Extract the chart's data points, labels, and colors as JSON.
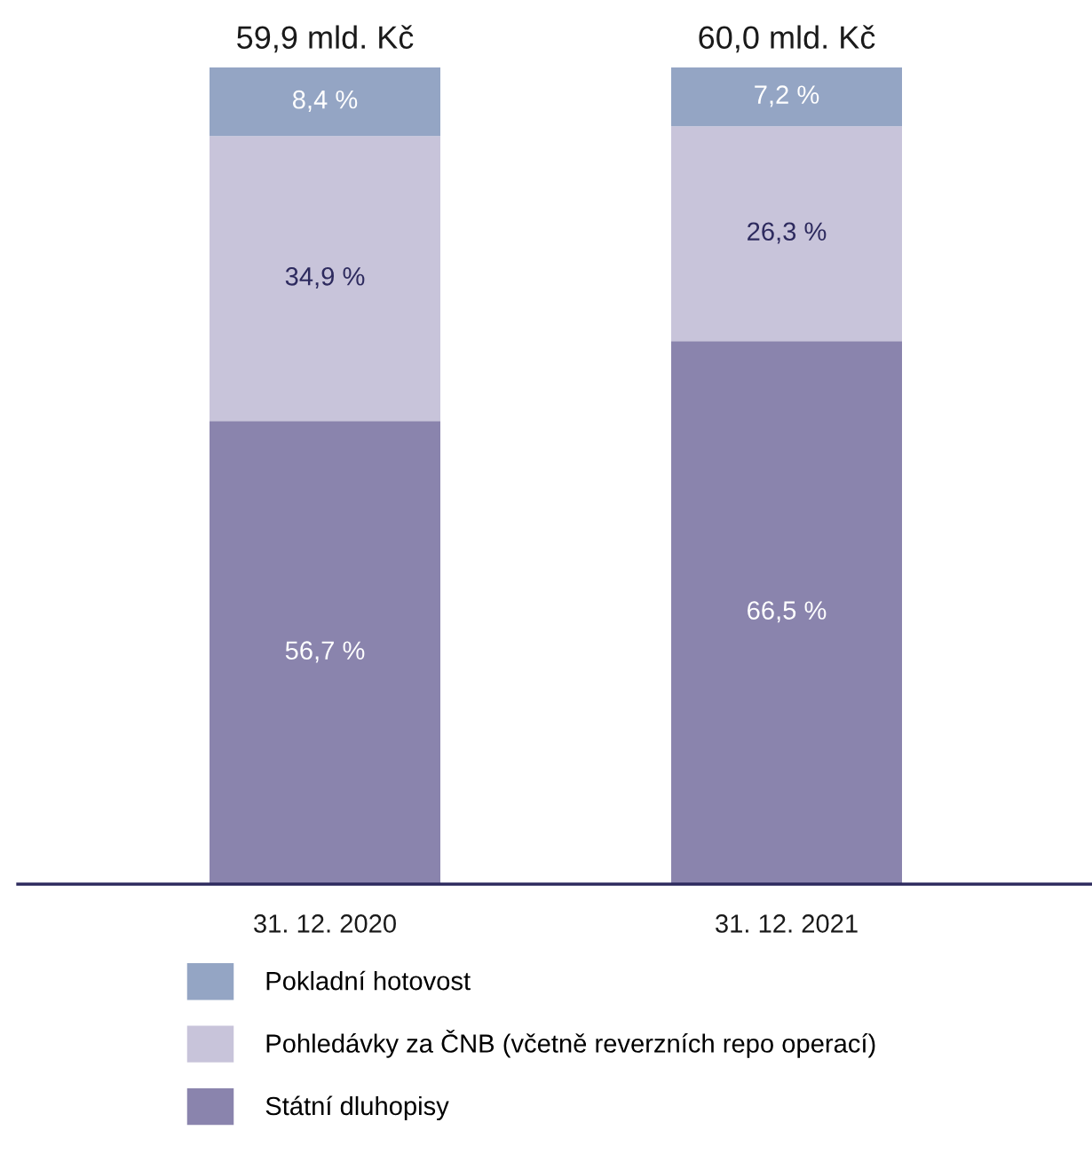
{
  "chart_data": {
    "type": "bar",
    "stacked": true,
    "categories": [
      "31. 12. 2020",
      "31. 12. 2021"
    ],
    "series": [
      {
        "name": "Státní dluhopisy",
        "color": "#8a84ad",
        "values": [
          56.7,
          66.5
        ],
        "value_labels": [
          "56,7 %",
          "66,5 %"
        ]
      },
      {
        "name": "Pohledávky za ČNB (včetně reverzních repo operací)",
        "color": "#c8c4da",
        "values": [
          34.9,
          26.3
        ],
        "value_labels": [
          "34,9 %",
          "26,3 %"
        ]
      },
      {
        "name": "Pokladní hotovost",
        "color": "#94a5c4",
        "values": [
          8.4,
          7.2
        ],
        "value_labels": [
          "8,4 %",
          "7,2 %"
        ]
      }
    ],
    "annotations": [
      {
        "text": "59,9 mld. Kč",
        "x": "31. 12. 2020",
        "y": 100
      },
      {
        "text": "60,0 mld. Kč",
        "x": "31. 12. 2021",
        "y": 100
      }
    ],
    "legend": "bottom",
    "grid": false
  }
}
